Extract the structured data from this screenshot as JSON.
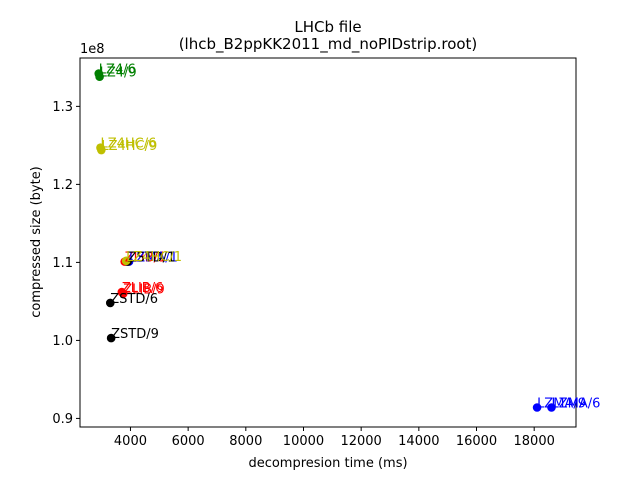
{
  "chart_data": {
    "type": "scatter",
    "title": "LHCb file",
    "subtitle": "(lhcb_B2ppKK2011_md_noPIDstrip.root)",
    "xlabel": "decompresion time (ms)",
    "ylabel": "compressed size (byte)",
    "y_offset_label": "1e8",
    "xlim": [
      2250,
      19450
    ],
    "ylim": [
      0.889,
      1.362
    ],
    "xticks": [
      4000,
      6000,
      8000,
      10000,
      12000,
      14000,
      16000,
      18000
    ],
    "xtick_labels": [
      "4000",
      "6000",
      "8000",
      "10000",
      "12000",
      "14000",
      "16000",
      "18000"
    ],
    "yticks": [
      0.9,
      1.0,
      1.1,
      1.2,
      1.3
    ],
    "ytick_labels": [
      "0.9",
      "1.0",
      "1.1",
      "1.2",
      "1.3"
    ],
    "grid": false,
    "points": [
      {
        "label": "LZ4/6",
        "x": 2900,
        "y": 1.342,
        "color": "#008000"
      },
      {
        "label": "LZ4/9",
        "x": 2930,
        "y": 1.338,
        "color": "#008000"
      },
      {
        "label": "LZ4HC/6",
        "x": 2960,
        "y": 1.247,
        "color": "#bfbf00"
      },
      {
        "label": "LZ4HC/9",
        "x": 2990,
        "y": 1.244,
        "color": "#bfbf00"
      },
      {
        "label": "ZLIB/1",
        "x": 3800,
        "y": 1.101,
        "color": "#ff0000"
      },
      {
        "label": "LZMA/1",
        "x": 3950,
        "y": 1.101,
        "color": "#0000ff"
      },
      {
        "label": "ZSTD/1",
        "x": 3900,
        "y": 1.101,
        "color": "#000000"
      },
      {
        "label": "LZ4HC/1",
        "x": 3850,
        "y": 1.102,
        "color": "#bfbf00"
      },
      {
        "label": "ZLIB/6",
        "x": 3700,
        "y": 1.062,
        "color": "#ff0000"
      },
      {
        "label": "ZLIB/9",
        "x": 3750,
        "y": 1.06,
        "color": "#ff0000"
      },
      {
        "label": "ZSTD/6",
        "x": 3300,
        "y": 1.048,
        "color": "#000000"
      },
      {
        "label": "ZSTD/9",
        "x": 3330,
        "y": 1.003,
        "color": "#000000"
      },
      {
        "label": "LZMA/9",
        "x": 18100,
        "y": 0.914,
        "color": "#0000ff"
      },
      {
        "label": "LZMA/6",
        "x": 18600,
        "y": 0.914,
        "color": "#0000ff"
      }
    ]
  }
}
